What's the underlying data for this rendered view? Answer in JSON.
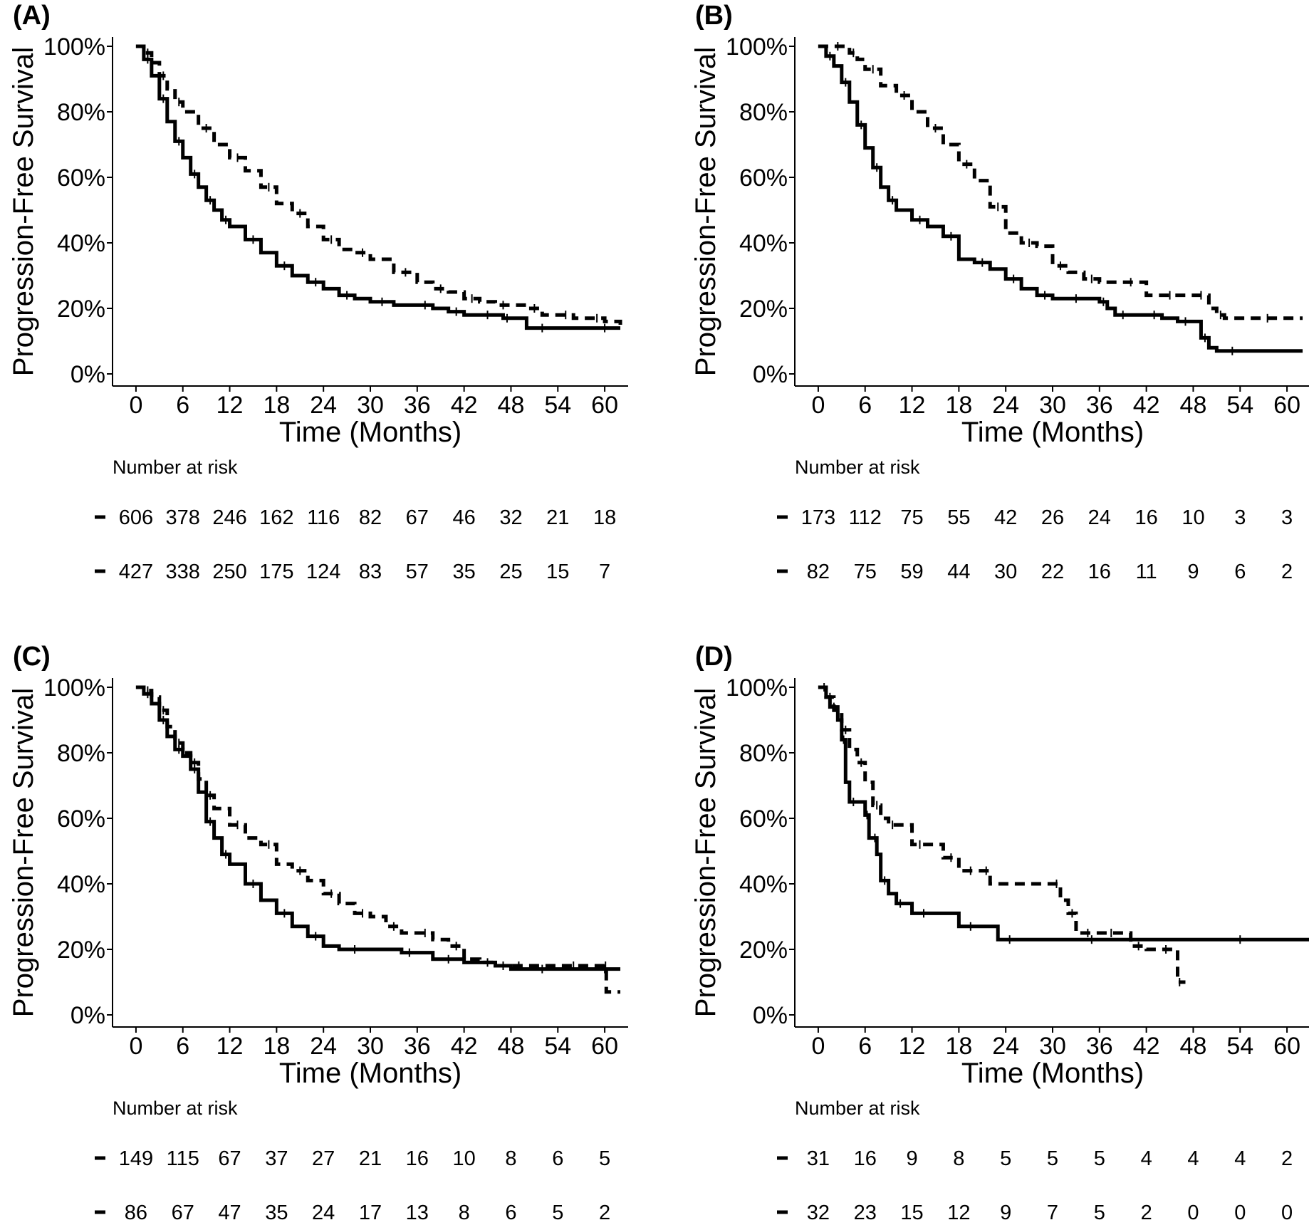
{
  "chart_data": [
    {
      "type": "line",
      "panel_label": "(A)",
      "xlabel": "Time (Months)",
      "ylabel": "Progression-Free Survival",
      "xticks": [
        "0",
        "6",
        "12",
        "18",
        "24",
        "30",
        "36",
        "42",
        "48",
        "54",
        "60"
      ],
      "yticks": [
        "0%",
        "20%",
        "40%",
        "60%",
        "80%",
        "100%"
      ],
      "xlim": [
        -3,
        63
      ],
      "ylim": [
        0,
        100
      ],
      "grid": false,
      "series": [
        {
          "style": "solid",
          "censor_marks": true,
          "x": [
            0,
            1,
            2,
            3,
            4,
            5,
            6,
            7,
            8,
            9,
            10,
            11,
            12,
            14,
            16,
            18,
            20,
            22,
            24,
            26,
            28,
            30,
            33,
            36,
            38,
            40,
            42,
            44,
            46,
            47,
            48,
            50,
            54,
            58,
            62
          ],
          "y": [
            100,
            96,
            91,
            84,
            77,
            71,
            66,
            61,
            57,
            53,
            50,
            47,
            45,
            41,
            37,
            33,
            30,
            28,
            26,
            24,
            23,
            22,
            21,
            21,
            20,
            19,
            18,
            18,
            18,
            17,
            17,
            14,
            14,
            14,
            14
          ]
        },
        {
          "style": "dashed",
          "censor_marks": true,
          "x": [
            0,
            1,
            2,
            3,
            4,
            5,
            6,
            8,
            10,
            12,
            14,
            16,
            18,
            20,
            22,
            24,
            26,
            28,
            30,
            33,
            36,
            38,
            40,
            42,
            44,
            46,
            48,
            50,
            52,
            54,
            56,
            58,
            60,
            62
          ],
          "y": [
            100,
            98,
            95,
            91,
            87,
            83,
            80,
            75,
            70,
            66,
            62,
            57,
            52,
            49,
            45,
            41,
            38,
            37,
            35,
            31,
            28,
            26,
            25,
            23,
            22,
            21,
            21,
            20,
            18,
            18,
            17,
            17,
            16,
            15
          ]
        }
      ],
      "risk_table": {
        "title": "Number at risk",
        "times": [
          0,
          6,
          12,
          18,
          24,
          30,
          36,
          42,
          48,
          54,
          60
        ],
        "rows": [
          {
            "values": [
              "606",
              "378",
              "246",
              "162",
              "116",
              "82",
              "67",
              "46",
              "32",
              "21",
              "18"
            ]
          },
          {
            "values": [
              "427",
              "338",
              "250",
              "175",
              "124",
              "83",
              "57",
              "35",
              "25",
              "15",
              "7"
            ]
          }
        ]
      }
    },
    {
      "type": "line",
      "panel_label": "(B)",
      "xlabel": "Time (Months)",
      "ylabel": "Progression-Free Survival",
      "xticks": [
        "0",
        "6",
        "12",
        "18",
        "24",
        "30",
        "36",
        "42",
        "48",
        "54",
        "60"
      ],
      "yticks": [
        "0%",
        "20%",
        "40%",
        "60%",
        "80%",
        "100%"
      ],
      "xlim": [
        -3,
        63
      ],
      "ylim": [
        0,
        100
      ],
      "grid": false,
      "series": [
        {
          "style": "solid",
          "censor_marks": true,
          "x": [
            0,
            1,
            2,
            3,
            4,
            5,
            6,
            7,
            8,
            9,
            10,
            12,
            14,
            16,
            18,
            20,
            22,
            24,
            26,
            28,
            30,
            32,
            34,
            36,
            37,
            38,
            40,
            42,
            44,
            46,
            48,
            49,
            50,
            51,
            55,
            62
          ],
          "y": [
            100,
            97,
            94,
            89,
            83,
            76,
            69,
            63,
            57,
            53,
            50,
            47,
            45,
            42,
            35,
            34,
            32,
            29,
            26,
            24,
            23,
            23,
            23,
            22,
            20,
            18,
            18,
            18,
            17,
            16,
            16,
            11,
            8,
            7,
            7,
            7
          ]
        },
        {
          "style": "dashed",
          "censor_marks": true,
          "x": [
            0,
            2,
            3,
            4,
            5,
            6,
            8,
            10,
            12,
            14,
            16,
            18,
            20,
            22,
            24,
            26,
            28,
            30,
            32,
            34,
            36,
            38,
            42,
            44,
            46,
            48,
            50,
            51,
            52,
            55,
            60,
            62
          ],
          "y": [
            100,
            100,
            100,
            98,
            96,
            93,
            88,
            85,
            80,
            75,
            70,
            64,
            59,
            51,
            43,
            40,
            39,
            33,
            31,
            29,
            28,
            28,
            24,
            24,
            24,
            24,
            20,
            18,
            17,
            17,
            17,
            17
          ]
        }
      ],
      "risk_table": {
        "title": "Number at risk",
        "times": [
          0,
          6,
          12,
          18,
          24,
          30,
          36,
          42,
          48,
          54,
          60
        ],
        "rows": [
          {
            "values": [
              "173",
              "112",
              "75",
              "55",
              "42",
              "26",
              "24",
              "16",
              "10",
              "3",
              "3"
            ]
          },
          {
            "values": [
              "82",
              "75",
              "59",
              "44",
              "30",
              "22",
              "16",
              "11",
              "9",
              "6",
              "2"
            ]
          }
        ]
      }
    },
    {
      "type": "line",
      "panel_label": "(C)",
      "xlabel": "Time (Months)",
      "ylabel": "Progression-Free Survival",
      "xticks": [
        "0",
        "6",
        "12",
        "18",
        "24",
        "30",
        "36",
        "42",
        "48",
        "54",
        "60"
      ],
      "yticks": [
        "0%",
        "20%",
        "40%",
        "60%",
        "80%",
        "100%"
      ],
      "xlim": [
        -3,
        63
      ],
      "ylim": [
        0,
        100
      ],
      "grid": false,
      "series": [
        {
          "style": "solid",
          "censor_marks": true,
          "x": [
            0,
            1,
            2,
            3,
            4,
            5,
            6,
            7,
            8,
            9,
            10,
            11,
            12,
            14,
            16,
            18,
            20,
            22,
            24,
            26,
            30,
            34,
            36,
            38,
            42,
            46,
            48,
            50,
            54,
            58,
            62
          ],
          "y": [
            100,
            98,
            95,
            90,
            85,
            81,
            79,
            75,
            68,
            59,
            54,
            49,
            46,
            40,
            35,
            31,
            27,
            24,
            21,
            20,
            20,
            19,
            19,
            17,
            16,
            15,
            14,
            14,
            14,
            14,
            14
          ]
        },
        {
          "style": "dashed",
          "censor_marks": true,
          "x": [
            0,
            1,
            2,
            3,
            4,
            5,
            6,
            7,
            8,
            9,
            10,
            12,
            14,
            16,
            18,
            20,
            22,
            24,
            26,
            28,
            30,
            32,
            34,
            36,
            38,
            40,
            42,
            44,
            46,
            48,
            50,
            54,
            58,
            60,
            60.2,
            62
          ],
          "y": [
            100,
            99,
            97,
            93,
            88,
            83,
            80,
            77,
            72,
            67,
            63,
            58,
            54,
            52,
            46,
            44,
            41,
            37,
            34,
            31,
            30,
            27,
            25,
            25,
            23,
            21,
            17,
            16,
            15,
            15,
            15,
            15,
            15,
            15,
            7,
            7
          ]
        }
      ],
      "risk_table": {
        "title": "Number at risk",
        "times": [
          0,
          6,
          12,
          18,
          24,
          30,
          36,
          42,
          48,
          54,
          60
        ],
        "rows": [
          {
            "values": [
              "149",
              "115",
              "67",
              "37",
              "27",
              "21",
              "16",
              "10",
              "8",
              "6",
              "5"
            ]
          },
          {
            "values": [
              "86",
              "67",
              "47",
              "35",
              "24",
              "17",
              "13",
              "8",
              "6",
              "5",
              "2"
            ]
          }
        ]
      }
    },
    {
      "type": "line",
      "panel_label": "(D)",
      "xlabel": "Time (Months)",
      "ylabel": "Progression-Free Survival",
      "xticks": [
        "0",
        "6",
        "12",
        "18",
        "24",
        "30",
        "36",
        "42",
        "48",
        "54",
        "60"
      ],
      "yticks": [
        "0%",
        "20%",
        "40%",
        "60%",
        "80%",
        "100%"
      ],
      "xlim": [
        -3,
        63
      ],
      "ylim": [
        0,
        100
      ],
      "grid": false,
      "series": [
        {
          "style": "solid",
          "censor_marks": true,
          "x": [
            0,
            0.5,
            1,
            1.5,
            2.5,
            3,
            3.5,
            4,
            5,
            6,
            6.5,
            7,
            7.5,
            8,
            9,
            10,
            11,
            12,
            15,
            18,
            21,
            23,
            26,
            30,
            40,
            50,
            58,
            63
          ],
          "y": [
            100,
            100,
            97,
            94,
            90,
            84,
            71,
            65,
            65,
            61,
            54,
            54,
            49,
            41,
            37,
            34,
            34,
            31,
            31,
            27,
            27,
            23,
            23,
            23,
            23,
            23,
            23,
            23
          ]
        },
        {
          "style": "dashed",
          "censor_marks": true,
          "x": [
            0,
            1,
            2,
            3,
            4,
            5,
            6,
            7,
            8,
            9,
            10,
            12,
            14,
            16,
            18,
            19,
            20,
            21,
            22,
            30,
            31,
            32,
            33,
            34,
            35,
            36,
            39,
            40,
            42,
            44,
            45,
            46,
            46.5,
            47
          ],
          "y": [
            100,
            97,
            93,
            87,
            81,
            77,
            71,
            64,
            60,
            58,
            58,
            52,
            52,
            48,
            44,
            44,
            44,
            44,
            40,
            40,
            35,
            31,
            25,
            25,
            25,
            25,
            25,
            21,
            20,
            20,
            20,
            10,
            10,
            10
          ]
        }
      ],
      "risk_table": {
        "title": "Number at risk",
        "times": [
          0,
          6,
          12,
          18,
          24,
          30,
          36,
          42,
          48,
          54,
          60
        ],
        "rows": [
          {
            "values": [
              "31",
              "16",
              "9",
              "8",
              "5",
              "5",
              "5",
              "4",
              "4",
              "4",
              "2"
            ]
          },
          {
            "values": [
              "32",
              "23",
              "15",
              "12",
              "9",
              "7",
              "5",
              "2",
              "0",
              "0",
              "0"
            ]
          }
        ]
      }
    }
  ]
}
